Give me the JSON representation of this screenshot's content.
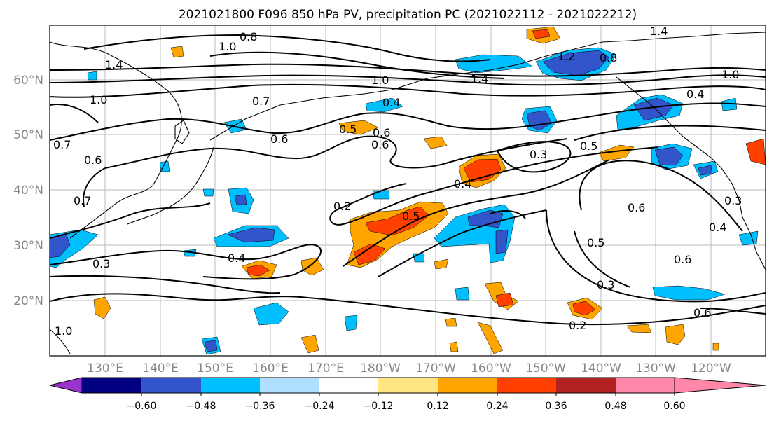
{
  "title": "2021021800 F096 850 hPa PV, precipitation PC (2021022112 - 2021022212)",
  "map": {
    "latitude_ticks": [
      "60°N",
      "50°N",
      "40°N",
      "30°N",
      "20°N"
    ],
    "longitude_ticks": [
      "130°E",
      "140°E",
      "150°E",
      "160°E",
      "170°E",
      "180°W",
      "170°W",
      "160°W",
      "150°W",
      "140°W",
      "130°W",
      "120°W"
    ]
  },
  "colorbar": {
    "tick_labels": [
      "−0.60",
      "−0.48",
      "−0.36",
      "−0.24",
      "−0.12",
      "0.12",
      "0.24",
      "0.36",
      "0.48",
      "0.60"
    ],
    "colors": [
      "#9933cc",
      "#000080",
      "#3355cc",
      "#00bfff",
      "#b0e0ff",
      "#ffffff",
      "#ffe680",
      "#ffa500",
      "#ff4000",
      "#b22222",
      "#ff88aa"
    ],
    "extend": "both"
  },
  "contour_labels": [
    "0.8",
    "1.0",
    "1.4",
    "1.0",
    "1.4",
    "1.2",
    "0.8",
    "1.4",
    "0.7",
    "0.4",
    "1.0",
    "0.4",
    "0.5",
    "0.7",
    "1.0",
    "0.6",
    "0.6",
    "0.7",
    "0.5",
    "0.6",
    "0.3",
    "0.5",
    "0.4",
    "0.2",
    "0.4",
    "0.3",
    "0.6",
    "0.5",
    "0.6",
    "0.3",
    "0.2",
    "0.6",
    "0.3",
    "0.4",
    "0.6",
    "1.0"
  ]
}
